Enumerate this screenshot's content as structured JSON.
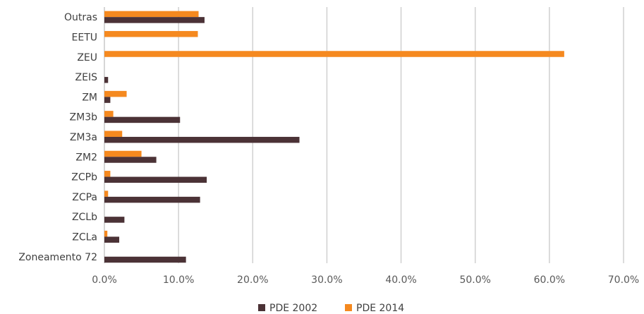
{
  "chart_data": {
    "type": "bar",
    "orientation": "horizontal",
    "title": "",
    "xlabel": "",
    "ylabel": "",
    "xlim": [
      0,
      70
    ],
    "x_ticks": [
      "0.0%",
      "10.0%",
      "20.0%",
      "30.0%",
      "40.0%",
      "50.0%",
      "60.0%",
      "70.0%"
    ],
    "grid": "vertical",
    "legend_position": "bottom",
    "categories": [
      "Outras",
      "EETU",
      "ZEU",
      "ZEIS",
      "ZM",
      "ZM3b",
      "ZM3a",
      "ZM2",
      "ZCPb",
      "ZCPa",
      "ZCLb",
      "ZCLa",
      "Zoneamento 72"
    ],
    "series": [
      {
        "name": "PDE 2002",
        "color": "#4b3236",
        "values": [
          13.5,
          0,
          0,
          0.5,
          0.8,
          10.2,
          26.3,
          7.0,
          13.8,
          12.9,
          2.7,
          2.0,
          11.0
        ]
      },
      {
        "name": "PDE 2014",
        "color": "#f5891f",
        "values": [
          12.7,
          12.6,
          62.0,
          0,
          3.0,
          1.2,
          2.4,
          5.0,
          0.8,
          0.5,
          0,
          0.4,
          0
        ]
      }
    ]
  }
}
